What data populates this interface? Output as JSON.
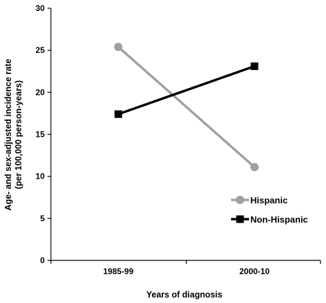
{
  "chart_data": {
    "type": "line",
    "categories": [
      "1985-99",
      "2000-10"
    ],
    "series": [
      {
        "name": "Hispanic",
        "values": [
          25.4,
          11.1
        ],
        "color": "#a0a0a0",
        "marker": "circle"
      },
      {
        "name": "Non-Hispanic",
        "values": [
          17.4,
          23.1
        ],
        "color": "#000000",
        "marker": "square"
      }
    ],
    "xlabel": "Years of diagnosis",
    "ylabel_line1": "Age- and sex-adjusted incidence rate",
    "ylabel_line2": "(per 100,000 person-years)",
    "ylim": [
      0,
      30
    ],
    "yticks": [
      "0",
      "5",
      "10",
      "15",
      "20",
      "25",
      "30"
    ],
    "grid": false,
    "legend_position": "lower-right"
  }
}
